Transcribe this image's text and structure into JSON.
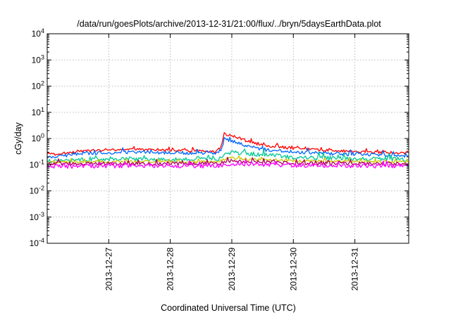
{
  "chart_data": {
    "type": "line",
    "title": "/data/run/goesPlots/archive/2013-12-31/21:00/flux/../bryn/5daysEarthData.plot",
    "xlabel": "Coordinated Universal Time (UTC)",
    "ylabel": "cGy/day",
    "y_scale": "log",
    "ylim": [
      0.0001,
      10000
    ],
    "y_ticks": [
      {
        "value": 0.0001,
        "base": "10",
        "exp": "-4"
      },
      {
        "value": 0.001,
        "base": "10",
        "exp": "-3"
      },
      {
        "value": 0.01,
        "base": "10",
        "exp": "-2"
      },
      {
        "value": 0.1,
        "base": "10",
        "exp": "-1"
      },
      {
        "value": 1,
        "base": "10",
        "exp": "0"
      },
      {
        "value": 10,
        "base": "10",
        "exp": "1"
      },
      {
        "value": 100,
        "base": "10",
        "exp": "2"
      },
      {
        "value": 1000,
        "base": "10",
        "exp": "3"
      },
      {
        "value": 10000,
        "base": "10",
        "exp": "4"
      }
    ],
    "xlim": [
      "2013-12-26 00:00",
      "2013-12-31 21:00"
    ],
    "x_ticks": [
      "2013-12-27",
      "2013-12-28",
      "2013-12-29",
      "2013-12-30",
      "2013-12-31"
    ],
    "grid": true,
    "legend": "none",
    "series": [
      {
        "color": "#ff0000",
        "x": [
          "2013-12-26 00:00",
          "2013-12-26 06:00",
          "2013-12-26 12:00",
          "2013-12-27 00:00",
          "2013-12-27 12:00",
          "2013-12-28 00:00",
          "2013-12-28 12:00",
          "2013-12-28 18:00",
          "2013-12-28 20:00",
          "2013-12-28 21:00",
          "2013-12-29 00:00",
          "2013-12-29 06:00",
          "2013-12-29 12:00",
          "2013-12-30 00:00",
          "2013-12-30 12:00",
          "2013-12-31 00:00",
          "2013-12-31 12:00",
          "2013-12-31 21:00"
        ],
        "y": [
          0.25,
          0.25,
          0.33,
          0.36,
          0.38,
          0.36,
          0.33,
          0.32,
          0.5,
          1.5,
          1.3,
          0.8,
          0.55,
          0.42,
          0.36,
          0.32,
          0.29,
          0.28
        ]
      },
      {
        "color": "#0066ff",
        "x": [
          "2013-12-26 00:00",
          "2013-12-26 06:00",
          "2013-12-26 12:00",
          "2013-12-27 00:00",
          "2013-12-27 12:00",
          "2013-12-28 00:00",
          "2013-12-28 12:00",
          "2013-12-28 18:00",
          "2013-12-28 20:00",
          "2013-12-28 21:00",
          "2013-12-29 00:00",
          "2013-12-29 06:00",
          "2013-12-29 12:00",
          "2013-12-30 00:00",
          "2013-12-30 12:00",
          "2013-12-31 00:00",
          "2013-12-31 12:00",
          "2013-12-31 21:00"
        ],
        "y": [
          0.2,
          0.21,
          0.27,
          0.29,
          0.3,
          0.29,
          0.27,
          0.26,
          0.4,
          0.95,
          0.8,
          0.5,
          0.38,
          0.31,
          0.27,
          0.25,
          0.23,
          0.22
        ]
      },
      {
        "color": "#00c896",
        "x": [
          "2013-12-26 00:00",
          "2013-12-26 12:00",
          "2013-12-27 00:00",
          "2013-12-28 00:00",
          "2013-12-28 18:00",
          "2013-12-28 21:00",
          "2013-12-29 00:00",
          "2013-12-29 12:00",
          "2013-12-30 00:00",
          "2013-12-31 00:00",
          "2013-12-31 21:00"
        ],
        "y": [
          0.14,
          0.15,
          0.16,
          0.16,
          0.16,
          0.22,
          0.3,
          0.24,
          0.19,
          0.17,
          0.16
        ]
      },
      {
        "color": "#c8c800",
        "x": [
          "2013-12-26 00:00",
          "2013-12-27 00:00",
          "2013-12-28 00:00",
          "2013-12-28 18:00",
          "2013-12-28 21:00",
          "2013-12-29 00:00",
          "2013-12-29 12:00",
          "2013-12-30 00:00",
          "2013-12-31 00:00",
          "2013-12-31 21:00"
        ],
        "y": [
          0.125,
          0.13,
          0.13,
          0.13,
          0.16,
          0.18,
          0.15,
          0.14,
          0.13,
          0.13
        ]
      },
      {
        "color": "#b00060",
        "x": [
          "2013-12-26 00:00",
          "2013-12-27 00:00",
          "2013-12-28 00:00",
          "2013-12-28 18:00",
          "2013-12-28 21:00",
          "2013-12-29 00:00",
          "2013-12-29 12:00",
          "2013-12-30 00:00",
          "2013-12-31 00:00",
          "2013-12-31 21:00"
        ],
        "y": [
          0.11,
          0.11,
          0.11,
          0.11,
          0.13,
          0.14,
          0.125,
          0.115,
          0.11,
          0.11
        ]
      },
      {
        "color": "#ff00ff",
        "x": [
          "2013-12-26 00:00",
          "2013-12-27 00:00",
          "2013-12-28 00:00",
          "2013-12-28 18:00",
          "2013-12-28 21:00",
          "2013-12-29 00:00",
          "2013-12-29 12:00",
          "2013-12-30 00:00",
          "2013-12-31 00:00",
          "2013-12-31 21:00"
        ],
        "y": [
          0.085,
          0.09,
          0.09,
          0.09,
          0.1,
          0.11,
          0.1,
          0.095,
          0.09,
          0.09
        ]
      }
    ]
  }
}
